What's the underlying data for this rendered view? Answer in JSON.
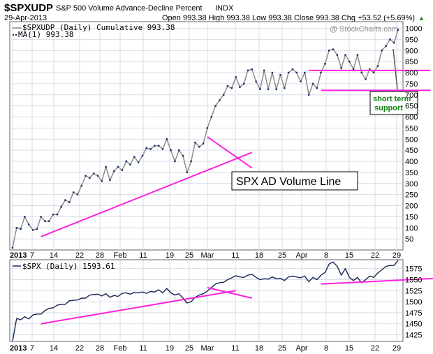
{
  "header": {
    "symbol": "$SPXUDP",
    "description": "S&P 500 Volume Advance-Decline Percent",
    "exchange": "INDX",
    "date": "29-Apr-2013",
    "ohlc": "Open 993.38  High 993.38  Low 993.38  Close 993.38  Chg +53.52 (+5.69%)",
    "chg_arrow": "▲",
    "watermark": "@ StockCharts.com"
  },
  "colors": {
    "ad_line": "#8c8c8c",
    "ad_markers": "#1a2a6a",
    "spx_line": "#1a2450",
    "trend_lines": "#ff22dd",
    "support_line": "#22aa22",
    "support_text": "#108010",
    "grid": "#d6dde6",
    "panel_border": "#5a6470"
  },
  "annotations": {
    "title_box": "SPX AD Volume Line",
    "support_label_line1": "short term",
    "support_label_line2": "support"
  },
  "x_axis_labels": [
    "2013",
    "7",
    "14",
    "22",
    "28",
    "Feb",
    "11",
    "19",
    "25",
    "Mar",
    "11",
    "18",
    "25",
    "Apr",
    "8",
    "15",
    "22",
    "29"
  ],
  "chart_data": [
    {
      "type": "line",
      "legend": [
        "$SPXUDP (Daily) Cumulative 993.38",
        "MA(1) 993.38"
      ],
      "ylim": [
        0,
        1030
      ],
      "y_ticks": [
        50,
        100,
        150,
        200,
        250,
        300,
        350,
        400,
        450,
        500,
        550,
        600,
        650,
        700,
        750,
        800,
        850,
        900,
        950,
        1000
      ],
      "values": [
        10,
        100,
        95,
        150,
        115,
        90,
        95,
        150,
        130,
        130,
        160,
        160,
        195,
        225,
        215,
        260,
        250,
        290,
        335,
        325,
        345,
        335,
        310,
        375,
        315,
        355,
        375,
        360,
        400,
        385,
        420,
        395,
        425,
        460,
        455,
        470,
        470,
        455,
        500,
        450,
        400,
        450,
        425,
        350,
        400,
        485,
        465,
        480,
        550,
        600,
        650,
        675,
        700,
        740,
        730,
        780,
        735,
        750,
        810,
        815,
        760,
        725,
        810,
        725,
        800,
        725,
        790,
        730,
        800,
        815,
        800,
        760,
        800,
        700,
        750,
        730,
        800,
        840,
        900,
        905,
        880,
        820,
        880,
        850,
        815,
        880,
        800,
        770,
        815,
        800,
        830,
        900,
        920,
        950,
        935,
        993.38
      ],
      "trend_lines": [
        {
          "from": [
            7,
            60
          ],
          "to": [
            59,
            440
          ]
        },
        {
          "from": [
            48,
            510
          ],
          "to": [
            59,
            370
          ]
        },
        {
          "from": [
            73,
            810
          ],
          "to": [
            103,
            810
          ]
        },
        {
          "from": [
            76,
            720
          ],
          "to": [
            103,
            720
          ]
        },
        {
          "from": [
            107,
            920
          ],
          "to": [
            120,
            850
          ]
        }
      ],
      "support_line": {
        "from": [
          123,
          935
        ],
        "to": [
          126,
          935
        ]
      }
    },
    {
      "type": "line",
      "legend": [
        "$SPX (Daily) 1593.61"
      ],
      "ylim": [
        1410,
        1595
      ],
      "y_ticks": [
        1425,
        1450,
        1475,
        1500,
        1525,
        1550,
        1575
      ],
      "values": [
        1411,
        1462,
        1459,
        1466,
        1461,
        1470,
        1472,
        1472,
        1480,
        1485,
        1486,
        1492,
        1494,
        1494,
        1502,
        1503,
        1504,
        1508,
        1508,
        1515,
        1516,
        1517,
        1513,
        1518,
        1510,
        1514,
        1512,
        1519,
        1520,
        1517,
        1521,
        1520,
        1522,
        1519,
        1523,
        1522,
        1527,
        1520,
        1530,
        1520,
        1515,
        1518,
        1508,
        1497,
        1500,
        1510,
        1515,
        1518,
        1524,
        1532,
        1540,
        1543,
        1544,
        1550,
        1554,
        1559,
        1556,
        1555,
        1560,
        1562,
        1555,
        1550,
        1552,
        1551,
        1556,
        1552,
        1553,
        1548,
        1556,
        1558,
        1556,
        1554,
        1558,
        1545,
        1555,
        1550,
        1560,
        1566,
        1585,
        1590,
        1580,
        1560,
        1575,
        1555,
        1548,
        1555,
        1543,
        1550,
        1558,
        1555,
        1565,
        1572,
        1580,
        1582,
        1582,
        1593.61
      ],
      "trend_lines": [
        {
          "from": [
            7,
            1450
          ],
          "to": [
            55,
            1525
          ]
        },
        {
          "from": [
            48,
            1532
          ],
          "to": [
            59,
            1508
          ]
        },
        {
          "from": [
            76,
            1540
          ],
          "to": [
            109,
            1555
          ]
        },
        {
          "from": [
            107,
            1590
          ],
          "to": [
            120,
            1548
          ]
        }
      ]
    }
  ]
}
